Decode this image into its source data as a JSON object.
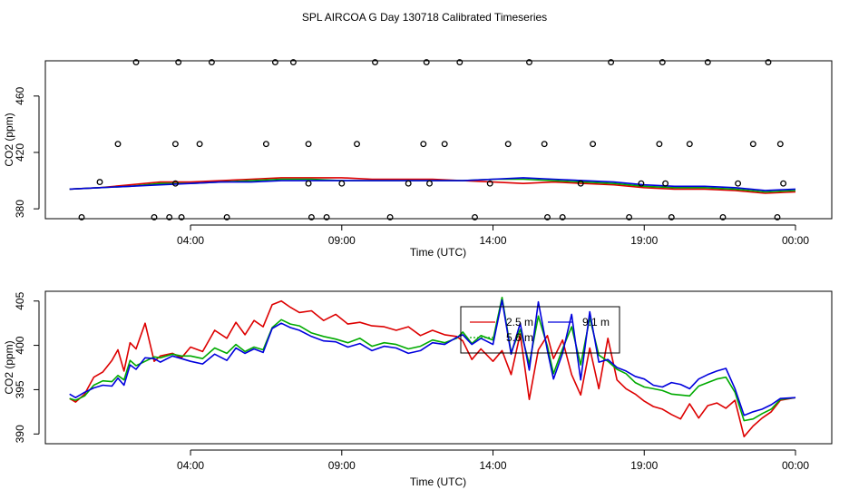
{
  "chart_data": {
    "title": "SPL AIRCOA G  Day 130718  Calibrated Timeseries",
    "x_ticks": [
      "04:00",
      "09:00",
      "14:00",
      "19:00",
      "00:00"
    ],
    "x_tick_hours": [
      4,
      9,
      14,
      19,
      24
    ],
    "panels": [
      {
        "type": "scatter+line",
        "xlabel": "Time (UTC)",
        "ylabel": "CO2 (ppm)",
        "y_ticks": [
          380,
          420,
          460
        ],
        "ylim": [
          373,
          485
        ],
        "xlim": [
          -0.8,
          25.2
        ],
        "line_series": [
          {
            "name": "2.5 m",
            "color": "#dd0000",
            "x": [
              0,
              1,
              2,
              3,
              4,
              5,
              6,
              7,
              8,
              9,
              10,
              11,
              12,
              13,
              14,
              15,
              16,
              17,
              18,
              19,
              20,
              21,
              22,
              23,
              24
            ],
            "y": [
              394,
              395,
              397,
              399,
              399,
              400,
              401,
              402,
              402,
              402,
              401,
              401,
              401,
              400,
              399,
              398,
              399,
              398,
              397,
              395,
              394,
              394,
              393,
              391,
              392
            ]
          },
          {
            "name": "5.6 m",
            "color": "#00aa00",
            "x": [
              0,
              1,
              2,
              3,
              4,
              5,
              6,
              7,
              8,
              9,
              10,
              11,
              12,
              13,
              14,
              15,
              16,
              17,
              18,
              19,
              20,
              21,
              22,
              23,
              24
            ],
            "y": [
              394,
              395,
              396,
              398,
              398,
              399,
              400,
              401,
              401,
              400,
              400,
              400,
              400,
              400,
              401,
              401,
              400,
              399,
              398,
              396,
              395,
              395,
              394,
              392,
              393
            ]
          },
          {
            "name": "9.1 m",
            "color": "#0000dd",
            "x": [
              0,
              1,
              2,
              3,
              4,
              5,
              6,
              7,
              8,
              9,
              10,
              11,
              12,
              13,
              14,
              15,
              16,
              17,
              18,
              19,
              20,
              21,
              22,
              23,
              24
            ],
            "y": [
              394,
              395,
              396,
              397,
              398,
              399,
              399,
              400,
              400,
              400,
              400,
              400,
              400,
              400,
              401,
              402,
              401,
              400,
              399,
              397,
              396,
              396,
              395,
              393,
              394
            ]
          }
        ],
        "points": {
          "x": [
            0.4,
            1.0,
            1.6,
            2.2,
            2.8,
            3.3,
            3.5,
            3.5,
            3.6,
            3.7,
            4.3,
            4.7,
            5.2,
            6.5,
            6.8,
            7.4,
            7.9,
            7.9,
            8.0,
            8.5,
            9.0,
            9.5,
            10.1,
            10.6,
            11.2,
            11.7,
            11.8,
            11.9,
            12.4,
            12.9,
            13.4,
            13.9,
            14.5,
            15.2,
            15.7,
            15.8,
            16.3,
            16.9,
            17.3,
            17.9,
            18.5,
            18.9,
            19.5,
            19.6,
            19.7,
            19.9,
            20.5,
            21.1,
            21.6,
            22.1,
            22.6,
            23.1,
            23.4,
            23.5,
            23.6
          ],
          "y": [
            374,
            399,
            426,
            484,
            374,
            374,
            398,
            426,
            484,
            374,
            426,
            484,
            374,
            426,
            484,
            484,
            426,
            398,
            374,
            374,
            398,
            426,
            484,
            374,
            398,
            426,
            484,
            398,
            426,
            484,
            374,
            398,
            426,
            484,
            426,
            374,
            374,
            398,
            426,
            484,
            374,
            398,
            426,
            484,
            398,
            374,
            426,
            484,
            374,
            398,
            426,
            484,
            374,
            426,
            398
          ]
        }
      },
      {
        "type": "line",
        "xlabel": "Time (UTC)",
        "ylabel": "CO2 (ppm)",
        "y_ticks": [
          390,
          395,
          400,
          405
        ],
        "ylim": [
          388.9,
          406.1
        ],
        "xlim": [
          -0.8,
          25.2
        ],
        "legend": {
          "placement": "top-center",
          "entries": [
            {
              "label": "2.5 m",
              "color": "#dd0000"
            },
            {
              "label": "9.1 m",
              "color": "#0000dd"
            },
            {
              "label": "5.6 m",
              "color": "#00aa00"
            }
          ]
        },
        "series": [
          {
            "name": "2.5 m",
            "color": "#dd0000",
            "x": [
              0,
              0.2,
              0.5,
              0.8,
              1.1,
              1.4,
              1.6,
              1.8,
              2.0,
              2.2,
              2.5,
              2.8,
              3.0,
              3.4,
              3.7,
              4.0,
              4.4,
              4.8,
              5.2,
              5.5,
              5.8,
              6.1,
              6.4,
              6.7,
              7.0,
              7.3,
              7.6,
              8.0,
              8.4,
              8.8,
              9.2,
              9.6,
              10.0,
              10.4,
              10.8,
              11.2,
              11.6,
              12.0,
              12.4,
              12.8,
              13.0,
              13.3,
              13.6,
              14.0,
              14.3,
              14.6,
              14.9,
              15.2,
              15.5,
              15.8,
              16.0,
              16.3,
              16.6,
              16.9,
              17.2,
              17.5,
              17.8,
              18.1,
              18.4,
              18.7,
              19.0,
              19.3,
              19.6,
              19.9,
              20.2,
              20.5,
              20.8,
              21.1,
              21.4,
              21.7,
              22.0,
              22.3,
              22.6,
              22.9,
              23.2,
              23.5,
              24.0
            ],
            "y": [
              394,
              393.6,
              394.5,
              396.4,
              397,
              398.3,
              399.5,
              397.1,
              400.3,
              399.6,
              402.5,
              398.2,
              398.8,
              399.1,
              398.6,
              399.8,
              399.3,
              401.7,
              400.8,
              402.6,
              401.2,
              402.8,
              402.1,
              404.6,
              405,
              404.3,
              403.7,
              403.9,
              402.8,
              403.5,
              402.4,
              402.6,
              402.2,
              402.1,
              401.7,
              402.1,
              401.1,
              401.7,
              401.2,
              401,
              400.5,
              398.4,
              399.6,
              398.2,
              399.4,
              396.7,
              401.3,
              393.9,
              399.5,
              401.1,
              398.5,
              400.6,
              396.7,
              394.4,
              399.7,
              395.1,
              400.8,
              396.1,
              395.1,
              394.5,
              393.7,
              393.1,
              392.8,
              392.2,
              391.7,
              393.4,
              391.8,
              393.2,
              393.5,
              392.9,
              393.8,
              389.7,
              390.9,
              391.8,
              392.5,
              393.8,
              394.1
            ]
          },
          {
            "name": "5.6 m",
            "color": "#00aa00",
            "x": [
              0,
              0.2,
              0.5,
              0.8,
              1.1,
              1.4,
              1.6,
              1.8,
              2.0,
              2.2,
              2.5,
              2.8,
              3.0,
              3.4,
              3.7,
              4.0,
              4.4,
              4.8,
              5.2,
              5.5,
              5.8,
              6.1,
              6.4,
              6.7,
              7.0,
              7.3,
              7.6,
              8.0,
              8.4,
              8.8,
              9.2,
              9.6,
              10.0,
              10.4,
              10.8,
              11.2,
              11.6,
              12.0,
              12.4,
              12.8,
              13.0,
              13.3,
              13.6,
              14.0,
              14.3,
              14.6,
              14.9,
              15.2,
              15.5,
              15.8,
              16.0,
              16.3,
              16.6,
              16.9,
              17.2,
              17.5,
              17.8,
              18.1,
              18.4,
              18.7,
              19.0,
              19.3,
              19.6,
              19.9,
              20.2,
              20.5,
              20.8,
              21.1,
              21.4,
              21.7,
              22.0,
              22.3,
              22.6,
              22.9,
              23.2,
              23.5,
              24.0
            ],
            "y": [
              394,
              393.8,
              394.3,
              395.5,
              396,
              395.9,
              396.6,
              396.1,
              398.3,
              397.7,
              398.2,
              398.7,
              398.6,
              399,
              398.8,
              398.8,
              398.5,
              399.7,
              399.1,
              400.1,
              399.3,
              399.8,
              399.5,
              402,
              402.9,
              402.4,
              402.2,
              401.4,
              401,
              400.7,
              400.3,
              400.8,
              399.9,
              400.3,
              400.1,
              399.6,
              399.9,
              400.6,
              400.3,
              400.8,
              401.5,
              400.2,
              401.1,
              400.6,
              405.4,
              399.2,
              401.8,
              397.9,
              403.3,
              399.9,
              396.8,
              399.6,
              402.1,
              397.8,
              403.1,
              398.9,
              398.2,
              397.3,
              396.8,
              395.8,
              395.3,
              395.1,
              394.9,
              394.5,
              394.4,
              394.3,
              395.4,
              395.8,
              396.2,
              396.4,
              394.7,
              391.5,
              391.7,
              392.3,
              392.8,
              393.9,
              394.1
            ]
          },
          {
            "name": "9.1 m",
            "color": "#0000dd",
            "x": [
              0,
              0.2,
              0.5,
              0.8,
              1.1,
              1.4,
              1.6,
              1.8,
              2.0,
              2.2,
              2.5,
              2.8,
              3.0,
              3.4,
              3.7,
              4.0,
              4.4,
              4.8,
              5.2,
              5.5,
              5.8,
              6.1,
              6.4,
              6.7,
              7.0,
              7.3,
              7.6,
              8.0,
              8.4,
              8.8,
              9.2,
              9.6,
              10.0,
              10.4,
              10.8,
              11.2,
              11.6,
              12.0,
              12.4,
              12.8,
              13.0,
              13.3,
              13.6,
              14.0,
              14.3,
              14.6,
              14.9,
              15.2,
              15.5,
              15.8,
              16.0,
              16.3,
              16.6,
              16.9,
              17.2,
              17.5,
              17.8,
              18.1,
              18.4,
              18.7,
              19.0,
              19.3,
              19.6,
              19.9,
              20.2,
              20.5,
              20.8,
              21.1,
              21.4,
              21.7,
              22.0,
              22.3,
              22.6,
              22.9,
              23.2,
              23.5,
              24.0
            ],
            "y": [
              394.5,
              394.1,
              394.7,
              395.2,
              395.5,
              395.4,
              396.3,
              395.5,
              397.8,
              397.3,
              398.6,
              398.5,
              398.1,
              398.8,
              398.5,
              398.2,
              397.9,
              399,
              398.3,
              399.7,
              399.1,
              399.6,
              399.2,
              401.9,
              402.5,
              402,
              401.7,
              401,
              400.5,
              400.4,
              399.8,
              400.2,
              399.4,
              399.9,
              399.7,
              399.1,
              399.4,
              400.3,
              400.1,
              400.9,
              401.2,
              400.1,
              400.8,
              400.1,
              405.1,
              399,
              402.5,
              397.2,
              404.9,
              399.4,
              396.2,
              399.1,
              403.5,
              396.1,
              403.8,
              398.1,
              398.4,
              397.5,
              397.1,
              396.5,
              396.2,
              395.5,
              395.3,
              395.8,
              395.6,
              395.1,
              396.2,
              396.7,
              397.1,
              397.4,
              395.1,
              392.1,
              392.5,
              392.8,
              393.3,
              394.0,
              394.1
            ]
          }
        ]
      }
    ]
  }
}
